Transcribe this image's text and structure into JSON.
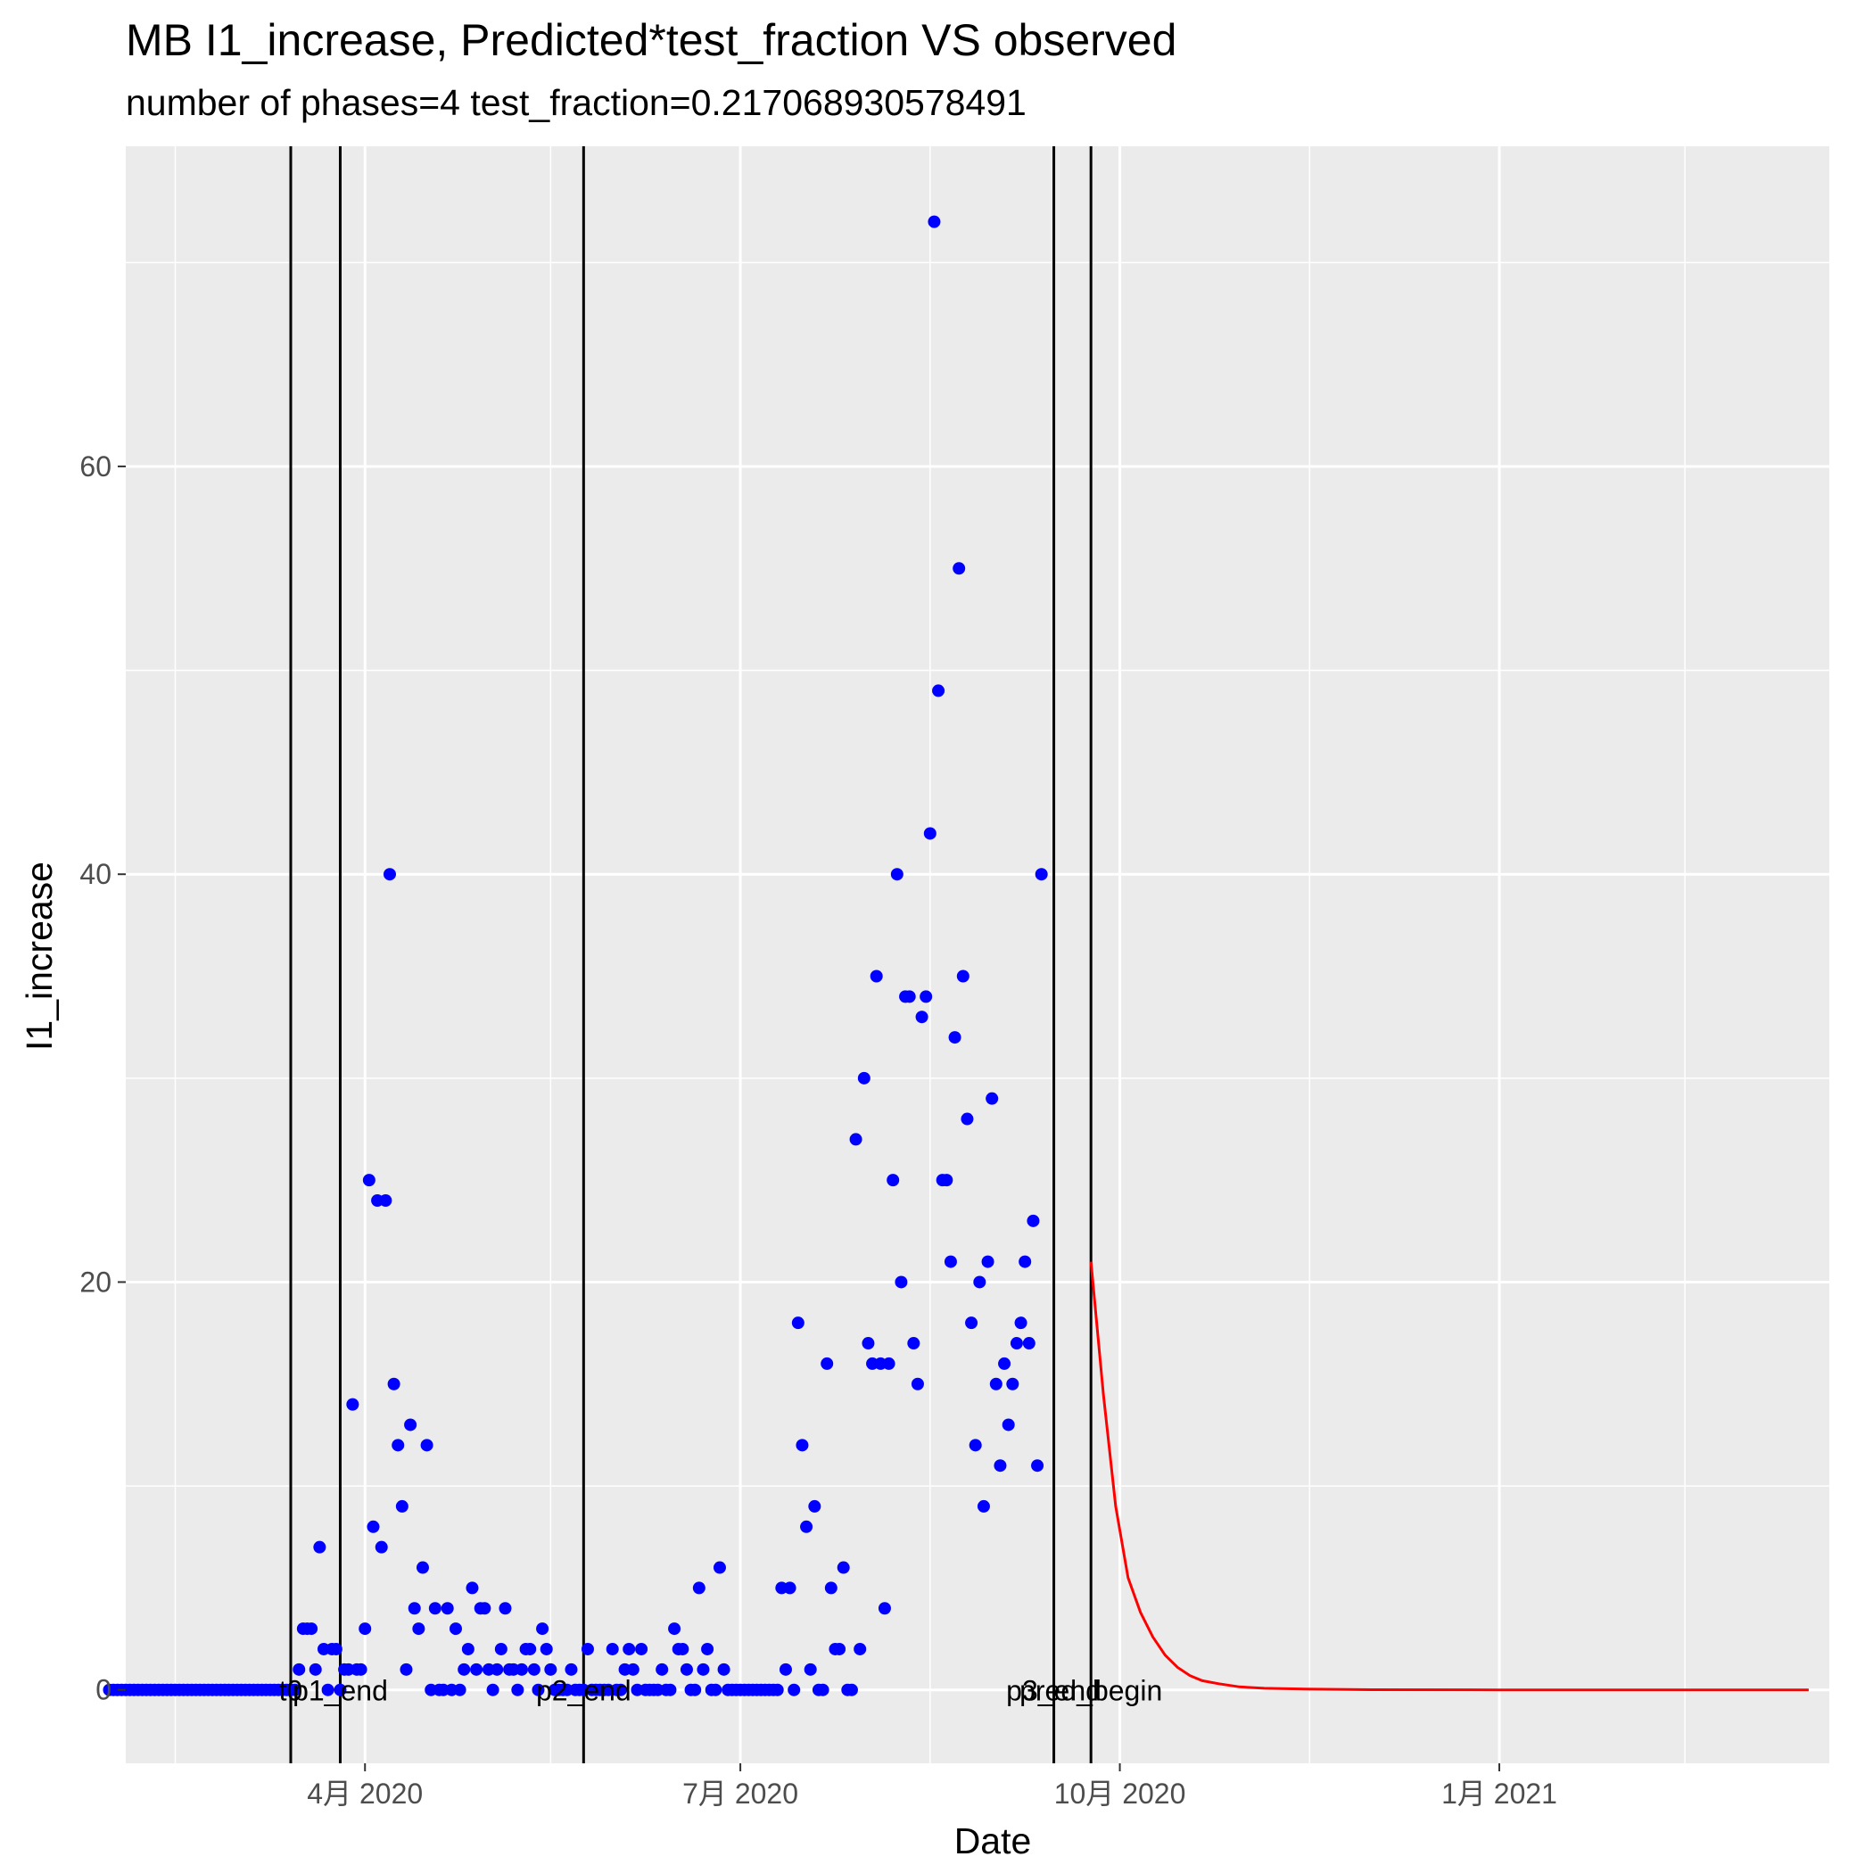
{
  "chart_data": {
    "type": "scatter",
    "title": "MB I1_increase, Predicted*test_fraction VS observed",
    "subtitle": "number of phases=4   test_fraction=0.217068930578491",
    "xlabel": "Date",
    "ylabel": "I1_increase",
    "xlim": [
      "2020-02-03",
      "2021-03-22"
    ],
    "ylim": [
      -3.6,
      75.7
    ],
    "x_ticks": [
      {
        "date": "2020-04-01",
        "label": "4月 2020"
      },
      {
        "date": "2020-07-01",
        "label": "7月 2020"
      },
      {
        "date": "2020-10-01",
        "label": "10月 2020"
      },
      {
        "date": "2021-01-01",
        "label": "1月 2021"
      }
    ],
    "x_minor_ticks": [
      "2020-02-15",
      "2020-05-16",
      "2020-08-16",
      "2020-11-16",
      "2021-02-15"
    ],
    "y_ticks": [
      0,
      20,
      40,
      60
    ],
    "y_minor_ticks": [
      10,
      30,
      50,
      70
    ],
    "grid": true,
    "colors": {
      "panel": "#ebebeb",
      "grid": "#ffffff",
      "observed": "#0000ff",
      "predicted": "#ff0000",
      "vline": "#000000"
    },
    "vlines": [
      {
        "date": "2020-03-14",
        "label": "t0"
      },
      {
        "date": "2020-03-26",
        "label": "p1_end"
      },
      {
        "date": "2020-05-24",
        "label": "p2_end"
      },
      {
        "date": "2020-09-15",
        "label": "p3_end"
      },
      {
        "date": "2020-09-24",
        "label": "pred_begin"
      }
    ],
    "observed": [
      {
        "x": "2020-01-30",
        "y": 0
      },
      {
        "x": "2020-01-31",
        "y": 0
      },
      {
        "x": "2020-02-01",
        "y": 0
      },
      {
        "x": "2020-02-02",
        "y": 0
      },
      {
        "x": "2020-02-03",
        "y": 0
      },
      {
        "x": "2020-02-04",
        "y": 0
      },
      {
        "x": "2020-02-05",
        "y": 0
      },
      {
        "x": "2020-02-06",
        "y": 0
      },
      {
        "x": "2020-02-07",
        "y": 0
      },
      {
        "x": "2020-02-08",
        "y": 0
      },
      {
        "x": "2020-02-09",
        "y": 0
      },
      {
        "x": "2020-02-10",
        "y": 0
      },
      {
        "x": "2020-02-11",
        "y": 0
      },
      {
        "x": "2020-02-12",
        "y": 0
      },
      {
        "x": "2020-02-13",
        "y": 0
      },
      {
        "x": "2020-02-14",
        "y": 0
      },
      {
        "x": "2020-02-15",
        "y": 0
      },
      {
        "x": "2020-02-16",
        "y": 0
      },
      {
        "x": "2020-02-17",
        "y": 0
      },
      {
        "x": "2020-02-18",
        "y": 0
      },
      {
        "x": "2020-02-19",
        "y": 0
      },
      {
        "x": "2020-02-20",
        "y": 0
      },
      {
        "x": "2020-02-21",
        "y": 0
      },
      {
        "x": "2020-02-22",
        "y": 0
      },
      {
        "x": "2020-02-23",
        "y": 0
      },
      {
        "x": "2020-02-24",
        "y": 0
      },
      {
        "x": "2020-02-25",
        "y": 0
      },
      {
        "x": "2020-02-26",
        "y": 0
      },
      {
        "x": "2020-02-27",
        "y": 0
      },
      {
        "x": "2020-02-28",
        "y": 0
      },
      {
        "x": "2020-02-29",
        "y": 0
      },
      {
        "x": "2020-03-01",
        "y": 0
      },
      {
        "x": "2020-03-02",
        "y": 0
      },
      {
        "x": "2020-03-03",
        "y": 0
      },
      {
        "x": "2020-03-04",
        "y": 0
      },
      {
        "x": "2020-03-05",
        "y": 0
      },
      {
        "x": "2020-03-06",
        "y": 0
      },
      {
        "x": "2020-03-07",
        "y": 0
      },
      {
        "x": "2020-03-08",
        "y": 0
      },
      {
        "x": "2020-03-09",
        "y": 0
      },
      {
        "x": "2020-03-10",
        "y": 0
      },
      {
        "x": "2020-03-11",
        "y": 0
      },
      {
        "x": "2020-03-12",
        "y": 0
      },
      {
        "x": "2020-03-13",
        "y": 0
      },
      {
        "x": "2020-03-14",
        "y": 0
      },
      {
        "x": "2020-03-15",
        "y": 0
      },
      {
        "x": "2020-03-16",
        "y": 1
      },
      {
        "x": "2020-03-17",
        "y": 3
      },
      {
        "x": "2020-03-18",
        "y": 3
      },
      {
        "x": "2020-03-19",
        "y": 3
      },
      {
        "x": "2020-03-20",
        "y": 1
      },
      {
        "x": "2020-03-21",
        "y": 7
      },
      {
        "x": "2020-03-22",
        "y": 2
      },
      {
        "x": "2020-03-23",
        "y": 0
      },
      {
        "x": "2020-03-24",
        "y": 2
      },
      {
        "x": "2020-03-25",
        "y": 2
      },
      {
        "x": "2020-03-26",
        "y": 0
      },
      {
        "x": "2020-03-27",
        "y": 1
      },
      {
        "x": "2020-03-28",
        "y": 1
      },
      {
        "x": "2020-03-29",
        "y": 14
      },
      {
        "x": "2020-03-30",
        "y": 1
      },
      {
        "x": "2020-03-31",
        "y": 1
      },
      {
        "x": "2020-04-01",
        "y": 3
      },
      {
        "x": "2020-04-02",
        "y": 25
      },
      {
        "x": "2020-04-03",
        "y": 8
      },
      {
        "x": "2020-04-04",
        "y": 24
      },
      {
        "x": "2020-04-05",
        "y": 7
      },
      {
        "x": "2020-04-06",
        "y": 24
      },
      {
        "x": "2020-04-07",
        "y": 40
      },
      {
        "x": "2020-04-08",
        "y": 15
      },
      {
        "x": "2020-04-09",
        "y": 12
      },
      {
        "x": "2020-04-10",
        "y": 9
      },
      {
        "x": "2020-04-11",
        "y": 1
      },
      {
        "x": "2020-04-12",
        "y": 13
      },
      {
        "x": "2020-04-13",
        "y": 4
      },
      {
        "x": "2020-04-14",
        "y": 3
      },
      {
        "x": "2020-04-15",
        "y": 6
      },
      {
        "x": "2020-04-16",
        "y": 12
      },
      {
        "x": "2020-04-17",
        "y": 0
      },
      {
        "x": "2020-04-18",
        "y": 4
      },
      {
        "x": "2020-04-19",
        "y": 0
      },
      {
        "x": "2020-04-20",
        "y": 0
      },
      {
        "x": "2020-04-21",
        "y": 4
      },
      {
        "x": "2020-04-22",
        "y": 0
      },
      {
        "x": "2020-04-23",
        "y": 3
      },
      {
        "x": "2020-04-24",
        "y": 0
      },
      {
        "x": "2020-04-25",
        "y": 1
      },
      {
        "x": "2020-04-26",
        "y": 2
      },
      {
        "x": "2020-04-27",
        "y": 5
      },
      {
        "x": "2020-04-28",
        "y": 1
      },
      {
        "x": "2020-04-29",
        "y": 4
      },
      {
        "x": "2020-04-30",
        "y": 4
      },
      {
        "x": "2020-05-01",
        "y": 1
      },
      {
        "x": "2020-05-02",
        "y": 0
      },
      {
        "x": "2020-05-03",
        "y": 1
      },
      {
        "x": "2020-05-04",
        "y": 2
      },
      {
        "x": "2020-05-05",
        "y": 4
      },
      {
        "x": "2020-05-06",
        "y": 1
      },
      {
        "x": "2020-05-07",
        "y": 1
      },
      {
        "x": "2020-05-08",
        "y": 0
      },
      {
        "x": "2020-05-09",
        "y": 1
      },
      {
        "x": "2020-05-10",
        "y": 2
      },
      {
        "x": "2020-05-11",
        "y": 2
      },
      {
        "x": "2020-05-12",
        "y": 1
      },
      {
        "x": "2020-05-13",
        "y": 0
      },
      {
        "x": "2020-05-14",
        "y": 3
      },
      {
        "x": "2020-05-15",
        "y": 2
      },
      {
        "x": "2020-05-16",
        "y": 1
      },
      {
        "x": "2020-05-17",
        "y": 0
      },
      {
        "x": "2020-05-18",
        "y": 0
      },
      {
        "x": "2020-05-19",
        "y": 0
      },
      {
        "x": "2020-05-20",
        "y": 0
      },
      {
        "x": "2020-05-21",
        "y": 1
      },
      {
        "x": "2020-05-22",
        "y": 0
      },
      {
        "x": "2020-05-23",
        "y": 0
      },
      {
        "x": "2020-05-24",
        "y": 0
      },
      {
        "x": "2020-05-25",
        "y": 2
      },
      {
        "x": "2020-05-26",
        "y": 0
      },
      {
        "x": "2020-05-27",
        "y": 0
      },
      {
        "x": "2020-05-28",
        "y": 0
      },
      {
        "x": "2020-05-29",
        "y": 0
      },
      {
        "x": "2020-05-30",
        "y": 0
      },
      {
        "x": "2020-05-31",
        "y": 2
      },
      {
        "x": "2020-06-01",
        "y": 0
      },
      {
        "x": "2020-06-02",
        "y": 0
      },
      {
        "x": "2020-06-03",
        "y": 1
      },
      {
        "x": "2020-06-04",
        "y": 2
      },
      {
        "x": "2020-06-05",
        "y": 1
      },
      {
        "x": "2020-06-06",
        "y": 0
      },
      {
        "x": "2020-06-07",
        "y": 2
      },
      {
        "x": "2020-06-08",
        "y": 0
      },
      {
        "x": "2020-06-09",
        "y": 0
      },
      {
        "x": "2020-06-10",
        "y": 0
      },
      {
        "x": "2020-06-11",
        "y": 0
      },
      {
        "x": "2020-06-12",
        "y": 1
      },
      {
        "x": "2020-06-13",
        "y": 0
      },
      {
        "x": "2020-06-14",
        "y": 0
      },
      {
        "x": "2020-06-15",
        "y": 3
      },
      {
        "x": "2020-06-16",
        "y": 2
      },
      {
        "x": "2020-06-17",
        "y": 2
      },
      {
        "x": "2020-06-18",
        "y": 1
      },
      {
        "x": "2020-06-19",
        "y": 0
      },
      {
        "x": "2020-06-20",
        "y": 0
      },
      {
        "x": "2020-06-21",
        "y": 5
      },
      {
        "x": "2020-06-22",
        "y": 1
      },
      {
        "x": "2020-06-23",
        "y": 2
      },
      {
        "x": "2020-06-24",
        "y": 0
      },
      {
        "x": "2020-06-25",
        "y": 0
      },
      {
        "x": "2020-06-26",
        "y": 6
      },
      {
        "x": "2020-06-27",
        "y": 1
      },
      {
        "x": "2020-06-28",
        "y": 0
      },
      {
        "x": "2020-06-29",
        "y": 0
      },
      {
        "x": "2020-06-30",
        "y": 0
      },
      {
        "x": "2020-07-01",
        "y": 0
      },
      {
        "x": "2020-07-02",
        "y": 0
      },
      {
        "x": "2020-07-03",
        "y": 0
      },
      {
        "x": "2020-07-04",
        "y": 0
      },
      {
        "x": "2020-07-05",
        "y": 0
      },
      {
        "x": "2020-07-06",
        "y": 0
      },
      {
        "x": "2020-07-07",
        "y": 0
      },
      {
        "x": "2020-07-08",
        "y": 0
      },
      {
        "x": "2020-07-09",
        "y": 0
      },
      {
        "x": "2020-07-10",
        "y": 0
      },
      {
        "x": "2020-07-11",
        "y": 5
      },
      {
        "x": "2020-07-12",
        "y": 1
      },
      {
        "x": "2020-07-13",
        "y": 5
      },
      {
        "x": "2020-07-14",
        "y": 0
      },
      {
        "x": "2020-07-15",
        "y": 18
      },
      {
        "x": "2020-07-16",
        "y": 12
      },
      {
        "x": "2020-07-17",
        "y": 8
      },
      {
        "x": "2020-07-18",
        "y": 1
      },
      {
        "x": "2020-07-19",
        "y": 9
      },
      {
        "x": "2020-07-20",
        "y": 0
      },
      {
        "x": "2020-07-21",
        "y": 0
      },
      {
        "x": "2020-07-22",
        "y": 16
      },
      {
        "x": "2020-07-23",
        "y": 5
      },
      {
        "x": "2020-07-24",
        "y": 2
      },
      {
        "x": "2020-07-25",
        "y": 2
      },
      {
        "x": "2020-07-26",
        "y": 6
      },
      {
        "x": "2020-07-27",
        "y": 0
      },
      {
        "x": "2020-07-28",
        "y": 0
      },
      {
        "x": "2020-07-29",
        "y": 27
      },
      {
        "x": "2020-07-30",
        "y": 2
      },
      {
        "x": "2020-07-31",
        "y": 30
      },
      {
        "x": "2020-08-01",
        "y": 17
      },
      {
        "x": "2020-08-02",
        "y": 16
      },
      {
        "x": "2020-08-03",
        "y": 35
      },
      {
        "x": "2020-08-04",
        "y": 16
      },
      {
        "x": "2020-08-05",
        "y": 4
      },
      {
        "x": "2020-08-06",
        "y": 16
      },
      {
        "x": "2020-08-07",
        "y": 25
      },
      {
        "x": "2020-08-08",
        "y": 40
      },
      {
        "x": "2020-08-09",
        "y": 20
      },
      {
        "x": "2020-08-10",
        "y": 34
      },
      {
        "x": "2020-08-11",
        "y": 34
      },
      {
        "x": "2020-08-12",
        "y": 17
      },
      {
        "x": "2020-08-13",
        "y": 15
      },
      {
        "x": "2020-08-14",
        "y": 33
      },
      {
        "x": "2020-08-15",
        "y": 34
      },
      {
        "x": "2020-08-16",
        "y": 42
      },
      {
        "x": "2020-08-17",
        "y": 72
      },
      {
        "x": "2020-08-18",
        "y": 49
      },
      {
        "x": "2020-08-19",
        "y": 25
      },
      {
        "x": "2020-08-20",
        "y": 25
      },
      {
        "x": "2020-08-21",
        "y": 21
      },
      {
        "x": "2020-08-22",
        "y": 32
      },
      {
        "x": "2020-08-23",
        "y": 55
      },
      {
        "x": "2020-08-24",
        "y": 35
      },
      {
        "x": "2020-08-25",
        "y": 28
      },
      {
        "x": "2020-08-26",
        "y": 18
      },
      {
        "x": "2020-08-27",
        "y": 12
      },
      {
        "x": "2020-08-28",
        "y": 20
      },
      {
        "x": "2020-08-29",
        "y": 9
      },
      {
        "x": "2020-08-30",
        "y": 21
      },
      {
        "x": "2020-08-31",
        "y": 29
      },
      {
        "x": "2020-09-01",
        "y": 15
      },
      {
        "x": "2020-09-02",
        "y": 11
      },
      {
        "x": "2020-09-03",
        "y": 16
      },
      {
        "x": "2020-09-04",
        "y": 13
      },
      {
        "x": "2020-09-05",
        "y": 15
      },
      {
        "x": "2020-09-06",
        "y": 17
      },
      {
        "x": "2020-09-07",
        "y": 18
      },
      {
        "x": "2020-09-08",
        "y": 21
      },
      {
        "x": "2020-09-09",
        "y": 17
      },
      {
        "x": "2020-09-10",
        "y": 23
      },
      {
        "x": "2020-09-11",
        "y": 11
      },
      {
        "x": "2020-09-12",
        "y": 40
      }
    ],
    "predicted": [
      {
        "x": "2020-09-24",
        "y": 21
      },
      {
        "x": "2020-09-27",
        "y": 14.5
      },
      {
        "x": "2020-09-30",
        "y": 9
      },
      {
        "x": "2020-10-03",
        "y": 5.5
      },
      {
        "x": "2020-10-06",
        "y": 3.8
      },
      {
        "x": "2020-10-09",
        "y": 2.6
      },
      {
        "x": "2020-10-12",
        "y": 1.7
      },
      {
        "x": "2020-10-15",
        "y": 1.1
      },
      {
        "x": "2020-10-18",
        "y": 0.7
      },
      {
        "x": "2020-10-21",
        "y": 0.45
      },
      {
        "x": "2020-10-25",
        "y": 0.3
      },
      {
        "x": "2020-10-30",
        "y": 0.15
      },
      {
        "x": "2020-11-05",
        "y": 0.08
      },
      {
        "x": "2020-11-15",
        "y": 0.04
      },
      {
        "x": "2020-12-01",
        "y": 0.01
      },
      {
        "x": "2021-01-01",
        "y": 0
      },
      {
        "x": "2021-03-17",
        "y": 0
      }
    ]
  }
}
